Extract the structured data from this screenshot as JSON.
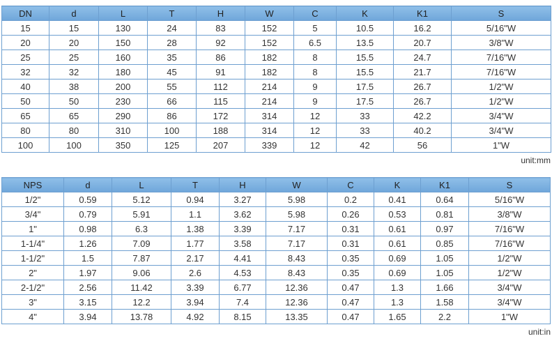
{
  "tables": [
    {
      "columns": [
        "DN",
        "d",
        "L",
        "T",
        "H",
        "W",
        "C",
        "K",
        "K1",
        "S"
      ],
      "rows": [
        [
          "15",
          "15",
          "130",
          "24",
          "83",
          "152",
          "5",
          "10.5",
          "16.2",
          "5/16\"W"
        ],
        [
          "20",
          "20",
          "150",
          "28",
          "92",
          "152",
          "6.5",
          "13.5",
          "20.7",
          "3/8\"W"
        ],
        [
          "25",
          "25",
          "160",
          "35",
          "86",
          "182",
          "8",
          "15.5",
          "24.7",
          "7/16\"W"
        ],
        [
          "32",
          "32",
          "180",
          "45",
          "91",
          "182",
          "8",
          "15.5",
          "21.7",
          "7/16\"W"
        ],
        [
          "40",
          "38",
          "200",
          "55",
          "112",
          "214",
          "9",
          "17.5",
          "26.7",
          "1/2\"W"
        ],
        [
          "50",
          "50",
          "230",
          "66",
          "115",
          "214",
          "9",
          "17.5",
          "26.7",
          "1/2\"W"
        ],
        [
          "65",
          "65",
          "290",
          "86",
          "172",
          "314",
          "12",
          "33",
          "42.2",
          "3/4\"W"
        ],
        [
          "80",
          "80",
          "310",
          "100",
          "188",
          "314",
          "12",
          "33",
          "40.2",
          "3/4\"W"
        ],
        [
          "100",
          "100",
          "350",
          "125",
          "207",
          "339",
          "12",
          "42",
          "56",
          "1\"W"
        ]
      ],
      "unit": "unit:mm"
    },
    {
      "columns": [
        "NPS",
        "d",
        "L",
        "T",
        "H",
        "W",
        "C",
        "K",
        "K1",
        "S"
      ],
      "rows": [
        [
          "1/2\"",
          "0.59",
          "5.12",
          "0.94",
          "3.27",
          "5.98",
          "0.2",
          "0.41",
          "0.64",
          "5/16\"W"
        ],
        [
          "3/4\"",
          "0.79",
          "5.91",
          "1.1",
          "3.62",
          "5.98",
          "0.26",
          "0.53",
          "0.81",
          "3/8\"W"
        ],
        [
          "1\"",
          "0.98",
          "6.3",
          "1.38",
          "3.39",
          "7.17",
          "0.31",
          "0.61",
          "0.97",
          "7/16\"W"
        ],
        [
          "1-1/4\"",
          "1.26",
          "7.09",
          "1.77",
          "3.58",
          "7.17",
          "0.31",
          "0.61",
          "0.85",
          "7/16\"W"
        ],
        [
          "1-1/2\"",
          "1.5",
          "7.87",
          "2.17",
          "4.41",
          "8.43",
          "0.35",
          "0.69",
          "1.05",
          "1/2\"W"
        ],
        [
          "2\"",
          "1.97",
          "9.06",
          "2.6",
          "4.53",
          "8.43",
          "0.35",
          "0.69",
          "1.05",
          "1/2\"W"
        ],
        [
          "2-1/2\"",
          "2.56",
          "11.42",
          "3.39",
          "6.77",
          "12.36",
          "0.47",
          "1.3",
          "1.66",
          "3/4\"W"
        ],
        [
          "3\"",
          "3.15",
          "12.2",
          "3.94",
          "7.4",
          "12.36",
          "0.47",
          "1.3",
          "1.58",
          "3/4\"W"
        ],
        [
          "4\"",
          "3.94",
          "13.78",
          "4.92",
          "8.15",
          "13.35",
          "0.47",
          "1.65",
          "2.2",
          "1\"W"
        ]
      ],
      "unit": "unit:in"
    }
  ]
}
